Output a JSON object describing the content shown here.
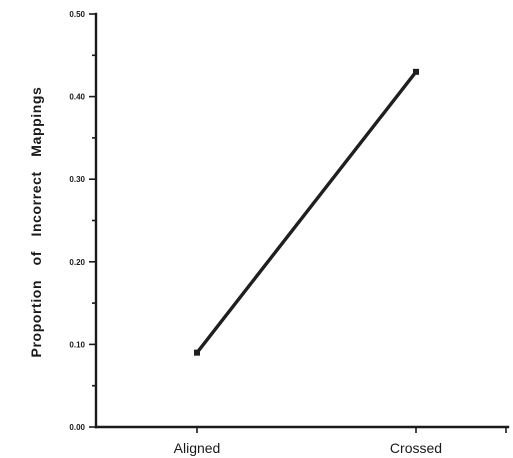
{
  "chart_data": {
    "type": "line",
    "title": "",
    "xlabel": "",
    "ylabel": "Proportion of Incorrect Mappings",
    "categories": [
      "Aligned",
      "Crossed"
    ],
    "series": [
      {
        "values": [
          0.09,
          0.43
        ]
      }
    ],
    "yticks": [
      "0.00",
      "0.10",
      "0.20",
      "0.30",
      "0.40",
      "0.50"
    ],
    "ylim": [
      0,
      0.5
    ],
    "grid": false,
    "colors": {
      "axis": "#1a1a1a",
      "line": "#1f1f1f"
    }
  }
}
